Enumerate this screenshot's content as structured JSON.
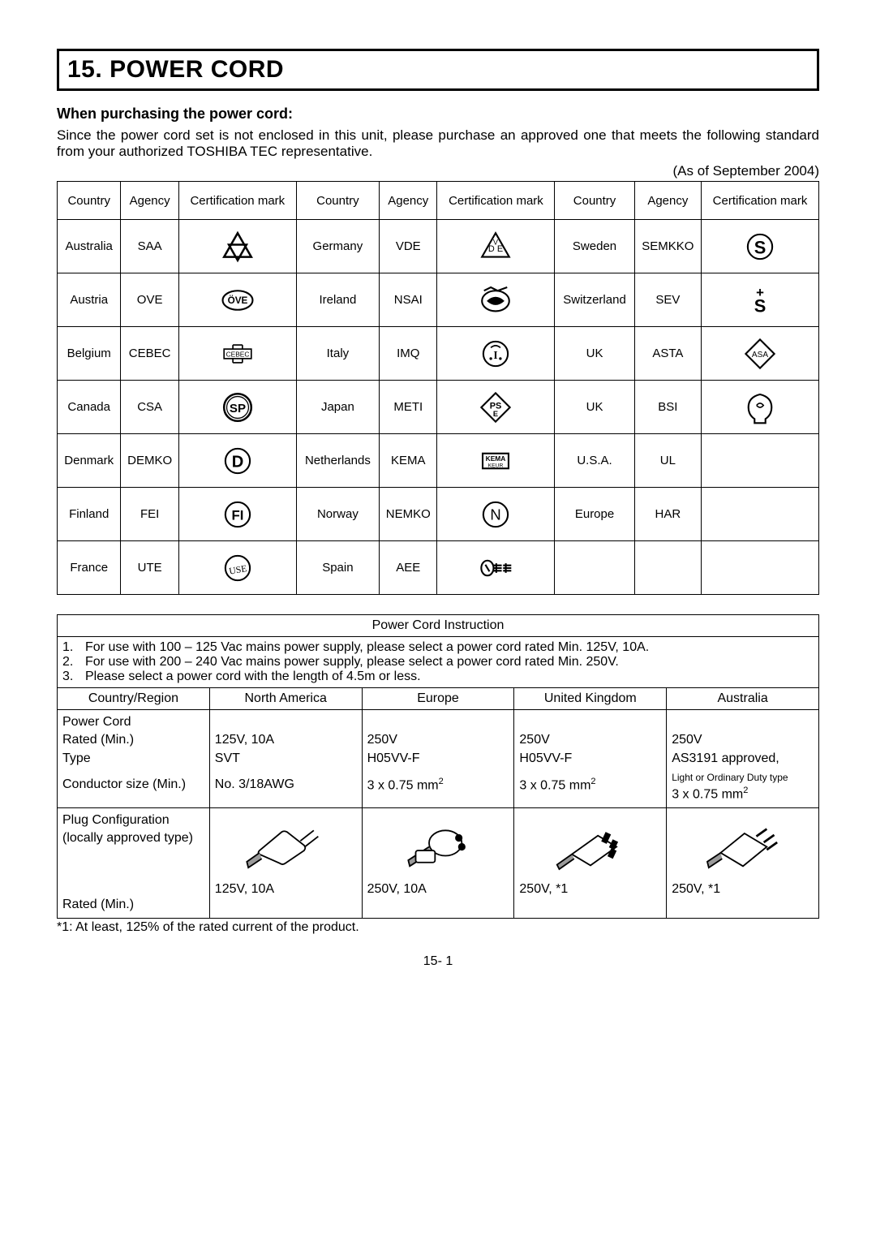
{
  "section": {
    "number": "15.",
    "title": "POWER CORD"
  },
  "subhead": "When purchasing the power cord:",
  "lead": "Since the power cord set is not enclosed in this unit, please purchase an approved one that meets the following standard from your authorized TOSHIBA TEC representative.",
  "asof": "(As of September 2004)",
  "cert_table": {
    "headers": [
      "Country",
      "Agency",
      "Certification mark"
    ],
    "columns": [
      {
        "rows": [
          {
            "country": "Australia",
            "agency": "SAA",
            "mark": "saa"
          },
          {
            "country": "Austria",
            "agency": "OVE",
            "mark": "ove"
          },
          {
            "country": "Belgium",
            "agency": "CEBEC",
            "mark": "cebec"
          },
          {
            "country": "Canada",
            "agency": "CSA",
            "mark": "csa"
          },
          {
            "country": "Denmark",
            "agency": "DEMKO",
            "mark": "demko"
          },
          {
            "country": "Finland",
            "agency": "FEI",
            "mark": "fei"
          },
          {
            "country": "France",
            "agency": "UTE",
            "mark": "ute"
          }
        ]
      },
      {
        "rows": [
          {
            "country": "Germany",
            "agency": "VDE",
            "mark": "vde"
          },
          {
            "country": "Ireland",
            "agency": "NSAI",
            "mark": "nsai"
          },
          {
            "country": "Italy",
            "agency": "IMQ",
            "mark": "imq"
          },
          {
            "country": "Japan",
            "agency": "METI",
            "mark": "meti"
          },
          {
            "country": "Netherlands",
            "agency": "KEMA",
            "mark": "kema"
          },
          {
            "country": "Norway",
            "agency": "NEMKO",
            "mark": "nemko"
          },
          {
            "country": "Spain",
            "agency": "AEE",
            "mark": "aee"
          }
        ]
      },
      {
        "rows": [
          {
            "country": "Sweden",
            "agency": "SEMKKO",
            "mark": "semkko"
          },
          {
            "country": "Switzerland",
            "agency": "SEV",
            "mark": "sev"
          },
          {
            "country": "UK",
            "agency": "ASTA",
            "mark": "asta"
          },
          {
            "country": "UK",
            "agency": "BSI",
            "mark": "bsi"
          },
          {
            "country": "U.S.A.",
            "agency": "UL",
            "mark": ""
          },
          {
            "country": "Europe",
            "agency": "HAR",
            "mark": ""
          },
          {
            "country": "",
            "agency": "",
            "mark": ""
          }
        ]
      }
    ]
  },
  "instruction": {
    "title": "Power Cord Instruction",
    "notes": [
      "For use with 100 – 125 Vac mains power supply, please select a power cord rated Min. 125V, 10A.",
      "For use with 200 – 240 Vac mains power supply, please select a power cord rated Min. 250V.",
      "Please select a power cord with the length of 4.5m or less."
    ],
    "region_header_label": "Country/Region",
    "regions": [
      "North America",
      "Europe",
      "United Kingdom",
      "Australia"
    ],
    "spec_rows": {
      "labels": {
        "cord": "Power Cord",
        "rated": "Rated (Min.)",
        "type": "Type",
        "conductor": "Conductor size (Min.)",
        "plug": "Plug Configuration (locally approved type)",
        "rated2": "Rated (Min.)"
      },
      "cells": {
        "north_america": {
          "rated": "125V, 10A",
          "type": "SVT",
          "conductor": "No. 3/18AWG",
          "plug": "na",
          "rated2": "125V, 10A"
        },
        "europe": {
          "rated": "250V",
          "type": "H05VV-F",
          "conductor": "3 x 0.75 mm",
          "plug": "eu",
          "rated2": "250V, 10A"
        },
        "uk": {
          "rated": "250V",
          "type": "H05VV-F",
          "conductor": "3 x 0.75 mm",
          "plug": "uk",
          "rated2": "250V, *1"
        },
        "australia": {
          "rated": "250V",
          "type": "AS3191 approved,",
          "type_extra": "Light or Ordinary Duty type",
          "conductor": "3 x 0.75 mm",
          "plug": "au",
          "rated2": "250V, *1"
        }
      }
    }
  },
  "footnote": "*1:  At least, 125% of the rated current of the product.",
  "pagenum": "15- 1",
  "colors": {
    "stroke": "#000000",
    "fill_dark": "#222222",
    "fill_grey": "#9a9a9a",
    "bg": "#ffffff"
  }
}
